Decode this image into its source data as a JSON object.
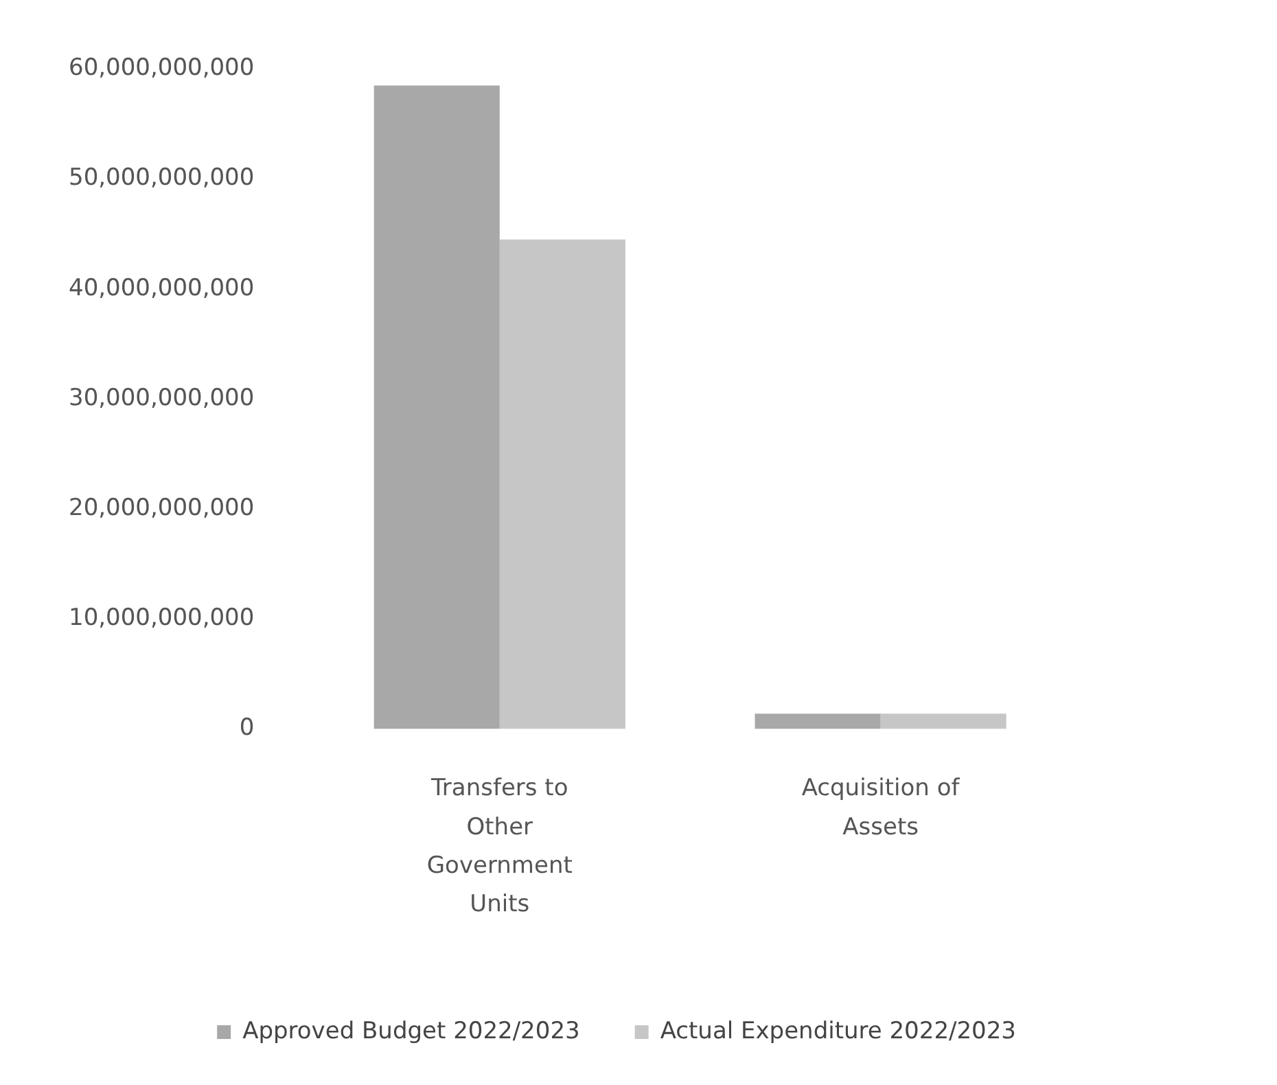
{
  "chart_data": {
    "type": "bar",
    "categories": [
      "Transfers to Other Government Units",
      "Acquisition of Assets"
    ],
    "series": [
      {
        "name": "Approved Budget 2022/2023",
        "color": "#a8a8a8",
        "values": [
          58500000000,
          1400000000
        ]
      },
      {
        "name": "Actual Expenditure 2022/2023",
        "color": "#c6c6c6",
        "values": [
          44500000000,
          1400000000
        ]
      }
    ],
    "ylim": [
      0,
      60000000000
    ],
    "yticks": [
      0,
      {
        "value": 10000000000,
        "label": "10,000,000,000"
      },
      {
        "value": 20000000000,
        "label": "20,000,000,000"
      },
      {
        "value": 30000000000,
        "label": "30,000,000,000"
      },
      {
        "value": 40000000000,
        "label": "40,000,000,000"
      },
      {
        "value": 50000000000,
        "label": "50,000,000,000"
      },
      {
        "value": 60000000000,
        "label": "60,000,000,000"
      }
    ],
    "grid": false,
    "legend": "bottom"
  }
}
